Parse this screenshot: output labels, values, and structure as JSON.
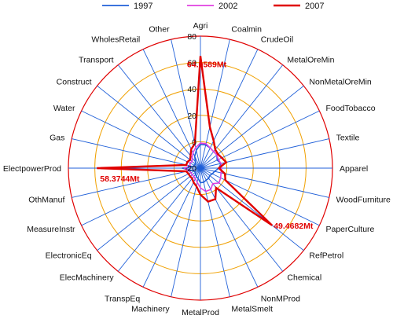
{
  "chart_data": {
    "type": "radar",
    "categories": [
      "Agri",
      "Coalmin",
      "CrudeOil",
      "MetalOreMin",
      "NonMetalOreMin",
      "FoodTobacco",
      "Textile",
      "Apparel",
      "WoodFurniture",
      "PaperCulture",
      "RefPetrol",
      "Chemical",
      "NonMProd",
      "MetalSmelt",
      "MetalProd",
      "Machinery",
      "TranspEq",
      "ElecMachinery",
      "ElectronicEq",
      "MeasureInstr",
      "OthManuf",
      "ElectpowerProd",
      "Gas",
      "Water",
      "Construct",
      "Transport",
      "WholesRetail",
      "Other"
    ],
    "radial_range": [
      -20,
      80
    ],
    "radial_ticks": [
      -20,
      0,
      20,
      40,
      60,
      80
    ],
    "radial_tick_labels": [
      "-20",
      "0",
      "20",
      "40",
      "60",
      "80"
    ],
    "series": [
      {
        "name": "1997",
        "color": "#1f5fd8",
        "values": [
          -2,
          -2,
          -3,
          -4,
          -4,
          -6,
          -4,
          -6,
          -9,
          -10,
          -11,
          -10,
          -10,
          -9,
          -9,
          -12,
          -13,
          -14,
          -15,
          -15,
          -13,
          -6,
          -14,
          -15,
          -15,
          -14,
          -10,
          -6
        ]
      },
      {
        "name": "2002",
        "color": "#e040e0",
        "values": [
          -1,
          -1,
          -3,
          -4,
          -4,
          -5,
          -4,
          -4,
          -4,
          -3,
          -2,
          -5,
          -2,
          -2,
          -5,
          -9,
          -11,
          -12,
          -12,
          -12,
          -11,
          -8,
          -12,
          -11,
          -12,
          -10,
          -7,
          -4
        ]
      },
      {
        "name": "2007",
        "color": "#e00000",
        "values": [
          64.9589,
          12,
          3,
          -2,
          -3,
          -2,
          0,
          -6,
          -1,
          1,
          49.4682,
          -1,
          6,
          6,
          0,
          -6,
          -8,
          -10,
          -10,
          -10,
          -9,
          58.3744,
          -9,
          -9,
          -10,
          -8,
          -4,
          -1
        ]
      }
    ],
    "annotations": [
      {
        "category": "Agri",
        "text": "64.9589Mt"
      },
      {
        "category": "ElectpowerProd",
        "text": "58.3744Mt"
      },
      {
        "category": "RefPetrol",
        "text": "49.4682Mt"
      }
    ],
    "legend": "top"
  },
  "styles": {
    "outer_ring_color": "#e00000",
    "inner_ring_color": "#f0a000",
    "spoke_color": "#1f5fd8",
    "annotation_color": "#e00000"
  }
}
